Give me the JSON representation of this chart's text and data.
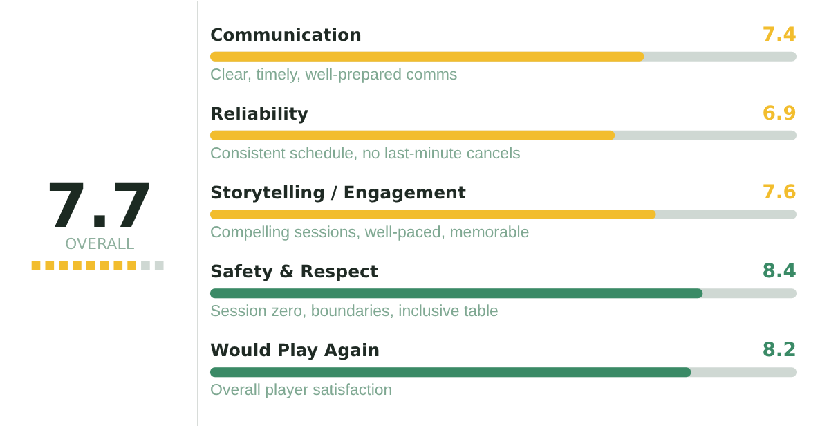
{
  "chart_data": [
    {
      "type": "other",
      "categories": [
        "OVERALL"
      ],
      "values": [
        7.7
      ],
      "data_labels": true,
      "colors": [
        "#f2bd2e"
      ]
    },
    {
      "type": "bar",
      "orientation": "horizontal",
      "categories": [
        "Communication",
        "Reliability",
        "Storytelling / Engagement",
        "Safety & Respect",
        "Would Play Again"
      ],
      "values": [
        7.4,
        6.9,
        7.6,
        8.4,
        8.2
      ],
      "colors": [
        "#f2bd2e",
        "#f2bd2e",
        "#f2bd2e",
        "#3a8a66",
        "#3a8a66"
      ],
      "xlim": [
        0,
        10
      ],
      "tick_labels": false,
      "data_labels": true,
      "annotations": [
        "Clear, timely, well-prepared comms",
        "Consistent schedule, no last-minute cancels",
        "Compelling sessions, well-paced, memorable",
        "Session zero, boundaries, inclusive table",
        "Overall player satisfaction"
      ]
    }
  ]
}
